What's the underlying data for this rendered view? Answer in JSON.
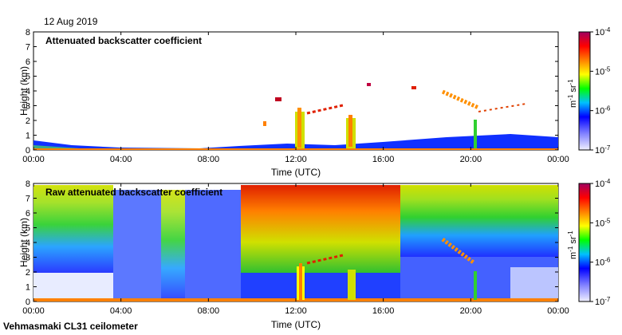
{
  "date_label": "12 Aug 2019",
  "site_label": "Vehmasmaki CL31 ceilometer",
  "colors": {
    "gradient": [
      "#f0f0ff",
      "#7f7fff",
      "#0000ff",
      "#00c0ff",
      "#00ff00",
      "#ffff00",
      "#ff8000",
      "#ff0000",
      "#a00060"
    ]
  },
  "chart_data": [
    {
      "type": "heatmap",
      "title": "Attenuated backscatter coefficient",
      "xlabel": "Time (UTC)",
      "ylabel": "Height (km)",
      "x_ticks": [
        "00:00",
        "04:00",
        "08:00",
        "12:00",
        "16:00",
        "20:00",
        "00:00"
      ],
      "y_ticks": [
        "0",
        "1",
        "2",
        "3",
        "4",
        "5",
        "6",
        "7",
        "8"
      ],
      "ylim": [
        0,
        8
      ],
      "colorbar": {
        "ticks": [
          {
            "base": "10",
            "exp": "-4"
          },
          {
            "base": "10",
            "exp": "-5"
          },
          {
            "base": "10",
            "exp": "-6"
          },
          {
            "base": "10",
            "exp": "-7"
          }
        ],
        "label_main": "m",
        "label_exp1": "-1",
        "label_mid": " sr",
        "label_exp2": "-1"
      }
    },
    {
      "type": "heatmap",
      "title": "Raw attenuated backscatter coefficient",
      "xlabel": "Time (UTC)",
      "ylabel": "Height (km)",
      "x_ticks": [
        "00:00",
        "04:00",
        "08:00",
        "12:00",
        "16:00",
        "20:00",
        "00:00"
      ],
      "y_ticks": [
        "0",
        "1",
        "2",
        "3",
        "4",
        "5",
        "6",
        "7",
        "8"
      ],
      "ylim": [
        0,
        8
      ],
      "colorbar": {
        "ticks": [
          {
            "base": "10",
            "exp": "-4"
          },
          {
            "base": "10",
            "exp": "-5"
          },
          {
            "base": "10",
            "exp": "-6"
          },
          {
            "base": "10",
            "exp": "-7"
          }
        ],
        "label_main": "m",
        "label_exp1": "-1",
        "label_mid": " sr",
        "label_exp2": "-1"
      }
    }
  ]
}
